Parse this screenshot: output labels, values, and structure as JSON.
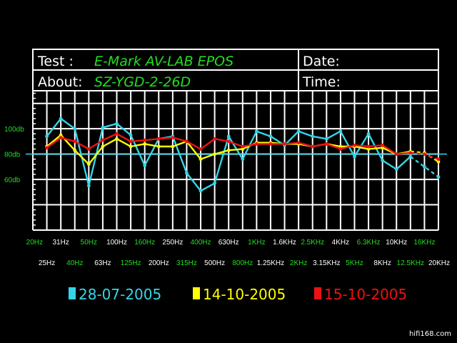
{
  "header": {
    "test_label": "Test :",
    "test_value": "E-Mark AV-LAB  EPOS",
    "about_label": "About:",
    "about_value": "SZ-YGD-2-26D",
    "date_label": "Date:",
    "time_label": "Time:"
  },
  "watermark": "hifi168.com",
  "colors": {
    "background": "#000000",
    "grid": "#ffffff",
    "label_green": "#22dd22",
    "label_white": "#ffffff",
    "reference_line": "#33d6e8"
  },
  "chart_data": {
    "type": "line",
    "title": "",
    "xlabel": "",
    "ylabel": "",
    "ylim": [
      20,
      130
    ],
    "reference_line_db": 80,
    "grid": "on",
    "legend_position": "bottom",
    "y_ticks": [
      {
        "value": 100,
        "label": "100db"
      },
      {
        "value": 80,
        "label": "80db"
      },
      {
        "value": 60,
        "label": "60db"
      }
    ],
    "categories": [
      "20Hz",
      "25Hz",
      "31Hz",
      "40Hz",
      "50Hz",
      "63Hz",
      "100Hz",
      "125Hz",
      "160Hz",
      "200Hz",
      "250Hz",
      "315Hz",
      "400Hz",
      "500Hz",
      "630Hz",
      "800Hz",
      "1KHz",
      "1.25KHz",
      "1.6KHz",
      "2KHz",
      "2.5KHz",
      "3.15KHz",
      "4KHz",
      "5KHz",
      "6.3KHz",
      "8KHz",
      "10KHz",
      "12.5KHz",
      "16KHz",
      "20KHz"
    ],
    "category_colors": [
      "green",
      "white",
      "white",
      "green",
      "green",
      "white",
      "white",
      "green",
      "green",
      "white",
      "white",
      "green",
      "green",
      "white",
      "white",
      "green",
      "green",
      "white",
      "white",
      "green",
      "green",
      "white",
      "white",
      "green",
      "green",
      "white",
      "white",
      "green",
      "green",
      "white"
    ],
    "series": [
      {
        "name": "28-07-2005",
        "color": "#33d6e8",
        "values": [
          null,
          94,
          108,
          100,
          55,
          101,
          104,
          95,
          71,
          92,
          94,
          65,
          51,
          57,
          94,
          76,
          98,
          94,
          87,
          98,
          94,
          92,
          98,
          78,
          96,
          75,
          68,
          78,
          70,
          62
        ],
        "dashed_from": 27
      },
      {
        "name": "14-10-2005",
        "color": "#ffff00",
        "values": [
          null,
          86,
          95,
          83,
          72,
          86,
          92,
          86,
          88,
          86,
          86,
          90,
          76,
          80,
          83,
          84,
          89,
          89,
          88,
          88,
          86,
          88,
          86,
          86,
          84,
          85,
          80,
          82,
          81,
          74
        ],
        "dashed_from": 27
      },
      {
        "name": "15-10-2005",
        "color": "#ee1111",
        "values": [
          null,
          85,
          93,
          90,
          84,
          91,
          96,
          90,
          91,
          92,
          93,
          90,
          84,
          92,
          90,
          86,
          88,
          88,
          88,
          89,
          86,
          88,
          84,
          87,
          86,
          87,
          80,
          81,
          80,
          76
        ],
        "dashed_from": 27
      }
    ]
  }
}
